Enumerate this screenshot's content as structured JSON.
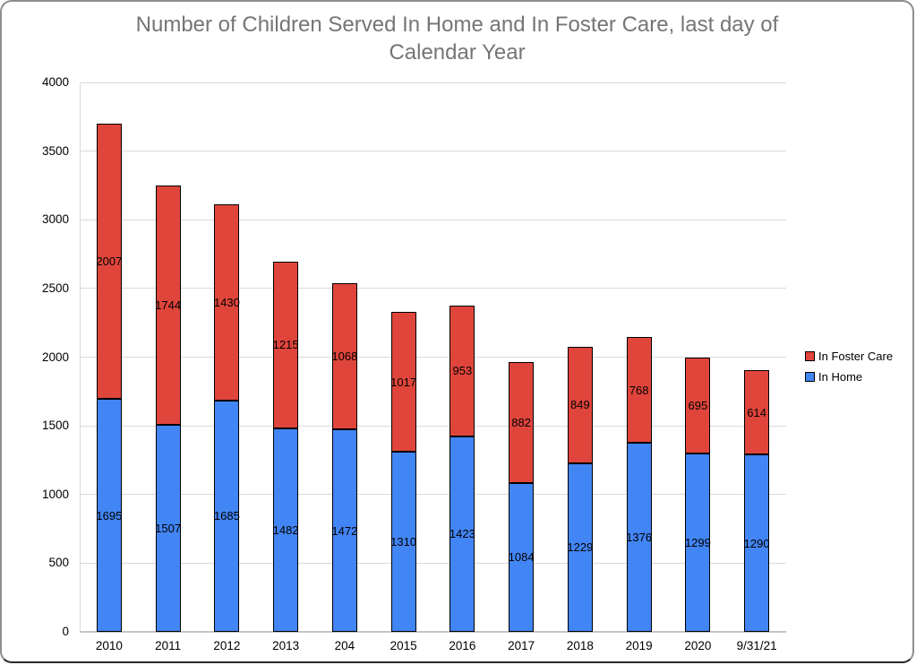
{
  "window": {
    "background": "#ffffff",
    "border_color": "#8e8e8e"
  },
  "chart_data": {
    "type": "bar",
    "stacked": true,
    "title": "Number of Children Served In Home and In Foster Care, last day of Calendar Year",
    "title_lines": [
      "Number of Children Served In Home and In Foster Care, last day of",
      "Calendar Year"
    ],
    "categories": [
      "2010",
      "2011",
      "2012",
      "2013",
      "204",
      "2015",
      "2016",
      "2017",
      "2018",
      "2019",
      "2020",
      "9/31/21"
    ],
    "series": [
      {
        "name": "In Home",
        "color": "#4285F4",
        "values": [
          1695,
          1507,
          1685,
          1482,
          1472,
          1310,
          1423,
          1084,
          1229,
          1376,
          1299,
          1290
        ]
      },
      {
        "name": "In Foster Care",
        "color": "#E0453C",
        "values": [
          2007,
          1744,
          1430,
          1215,
          1068,
          1017,
          953,
          882,
          849,
          768,
          695,
          614
        ]
      }
    ],
    "totals": [
      3702,
      3251,
      3115,
      2697,
      2540,
      2327,
      2376,
      1966,
      2078,
      2144,
      1994,
      1904
    ],
    "data_labels": true,
    "xlabel": "",
    "ylabel": "",
    "ylim": [
      0,
      4000
    ],
    "ytick_step": 500,
    "ytick_labels": [
      "0",
      "500",
      "1000",
      "1500",
      "2000",
      "2500",
      "3000",
      "3500",
      "4000"
    ],
    "grid": true,
    "legend": {
      "position": "right",
      "order": [
        "In Foster Care",
        "In Home"
      ]
    },
    "colors": {
      "title_text": "#757575",
      "label_text": "#000000",
      "gridline": "#d9d9d9",
      "axis_line": "#c4c4c4",
      "bar_border": "#000000"
    }
  }
}
